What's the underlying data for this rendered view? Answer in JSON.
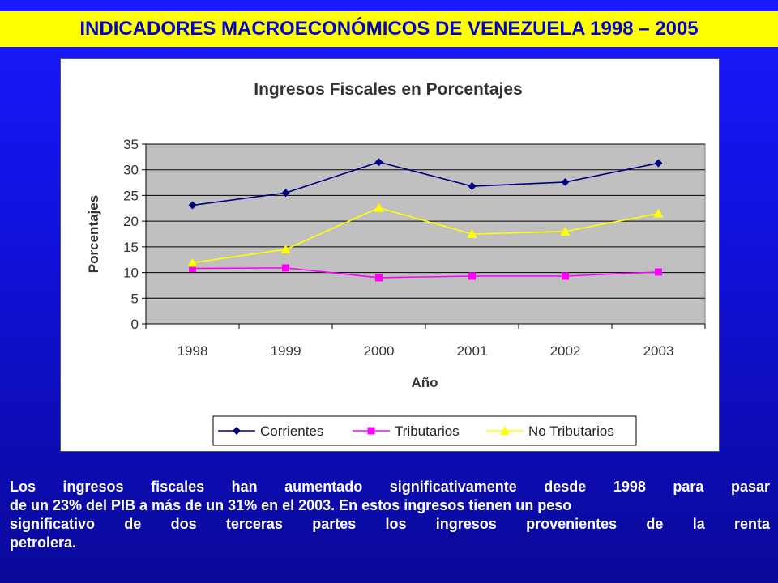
{
  "header": {
    "title": "INDICADORES MACROECONÓMICOS DE VENEZUELA 1998 – 2005"
  },
  "colors": {
    "header_bg": "#ffff00",
    "header_text": "#0000cc",
    "page_bg": "#1414e6",
    "plot_bg": "#c0c0c0"
  },
  "chart_data": {
    "type": "line",
    "title": "Ingresos Fiscales en Porcentajes",
    "xlabel": "Año",
    "ylabel": "Porcentajes",
    "categories": [
      "1998",
      "1999",
      "2000",
      "2001",
      "2002",
      "2003"
    ],
    "ylim": [
      0,
      35
    ],
    "yticks": [
      "0",
      "5",
      "10",
      "15",
      "20",
      "25",
      "30",
      "35"
    ],
    "grid": true,
    "legend_position": "bottom",
    "series": [
      {
        "name": "Corrientes",
        "values": [
          23.1,
          25.5,
          31.5,
          26.8,
          27.6,
          31.3
        ],
        "color": "#000080",
        "marker": "diamond"
      },
      {
        "name": "Tributarios",
        "values": [
          10.8,
          10.9,
          9.0,
          9.3,
          9.3,
          10.1
        ],
        "color": "#ff00ff",
        "marker": "square"
      },
      {
        "name": "No Tributarios",
        "values": [
          11.9,
          14.5,
          22.6,
          17.5,
          18.0,
          21.5
        ],
        "color": "#ffff00",
        "marker": "triangle"
      }
    ]
  },
  "caption": {
    "line1": "Los ingresos fiscales han aumentado significativamente desde 1998 para pasar",
    "line2": "de un 23% del PIB a más de un 31% en el 2003. En estos ingresos tienen un peso",
    "line3": "significativo de dos terceras partes los ingresos provenientes de la renta",
    "line4": "petrolera."
  }
}
